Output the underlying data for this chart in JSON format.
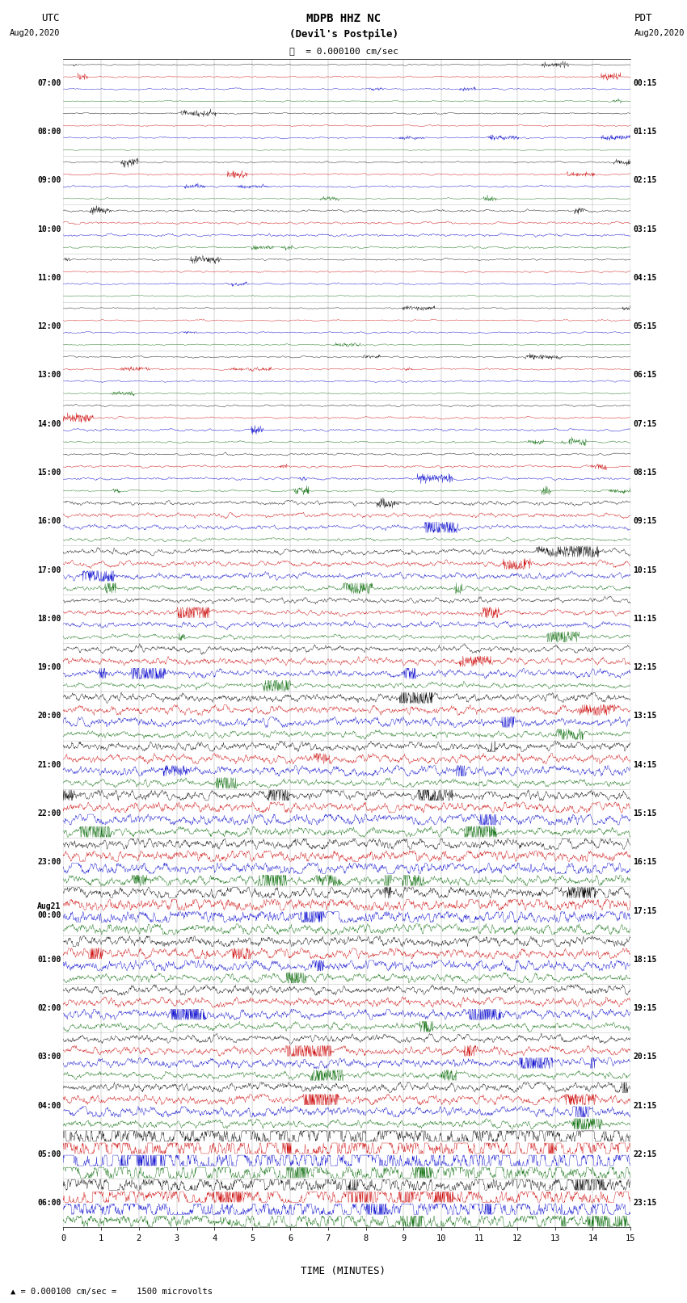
{
  "title_line1": "MDPB HHZ NC",
  "title_line2": "(Devil's Postpile)",
  "scale_text": "= 0.000100 cm/sec",
  "xlabel": "TIME (MINUTES)",
  "footer": "= 0.000100 cm/sec =    1500 microvolts",
  "left_header": "UTC",
  "left_date": "Aug20,2020",
  "right_header": "PDT",
  "right_date": "Aug20,2020",
  "bg_color": "#ffffff",
  "trace_colors": [
    "#000000",
    "#cc0000",
    "#0000cc",
    "#006600"
  ],
  "row_labels_utc": [
    "07:00",
    "08:00",
    "09:00",
    "10:00",
    "11:00",
    "12:00",
    "13:00",
    "14:00",
    "15:00",
    "16:00",
    "17:00",
    "18:00",
    "19:00",
    "20:00",
    "21:00",
    "22:00",
    "23:00",
    "Aug21\n00:00",
    "01:00",
    "02:00",
    "03:00",
    "04:00",
    "05:00",
    "06:00"
  ],
  "row_labels_pdt": [
    "00:15",
    "01:15",
    "02:15",
    "03:15",
    "04:15",
    "05:15",
    "06:15",
    "07:15",
    "08:15",
    "09:15",
    "10:15",
    "11:15",
    "12:15",
    "13:15",
    "14:15",
    "15:15",
    "16:15",
    "17:15",
    "18:15",
    "19:15",
    "20:15",
    "21:15",
    "22:15",
    "23:15"
  ],
  "n_rows": 24,
  "traces_per_row": 4,
  "minutes": 15,
  "row_amp_factors": [
    0.06,
    0.06,
    0.07,
    0.1,
    0.07,
    0.06,
    0.07,
    0.09,
    0.1,
    0.18,
    0.25,
    0.22,
    0.28,
    0.35,
    0.38,
    0.45,
    0.5,
    0.55,
    0.45,
    0.38,
    0.35,
    0.4,
    1.2,
    0.9
  ],
  "figwidth": 8.5,
  "figheight": 16.13,
  "dpi": 100,
  "lm": 0.092,
  "rm": 0.082,
  "tm": 0.045,
  "bm": 0.058
}
